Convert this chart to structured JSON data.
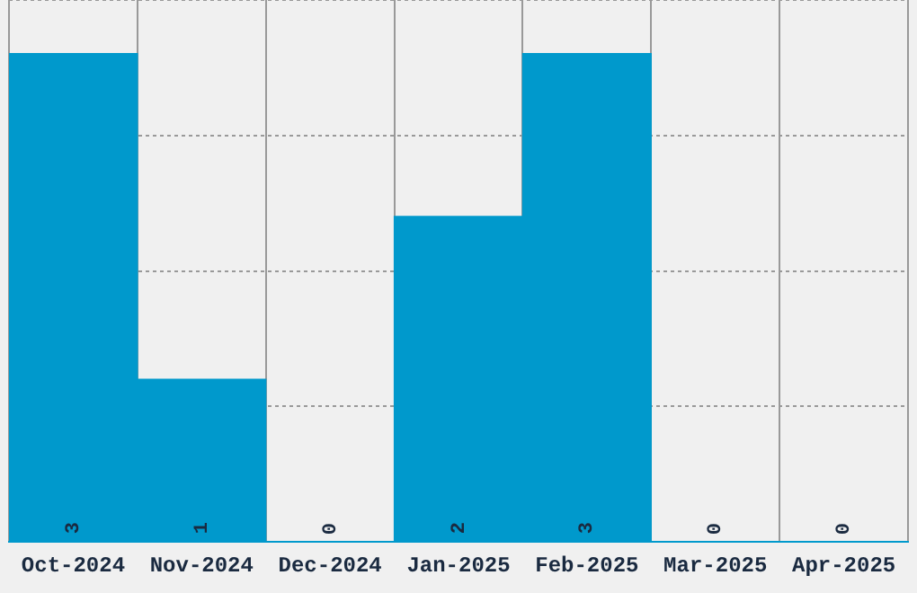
{
  "chart_data": {
    "type": "bar",
    "categories": [
      "Oct-2024",
      "Nov-2024",
      "Dec-2024",
      "Jan-2025",
      "Feb-2025",
      "Mar-2025",
      "Apr-2025"
    ],
    "values": [
      3,
      1,
      0,
      2,
      3,
      0,
      0
    ],
    "color": "#0099cc",
    "ylim": [
      0,
      3.33
    ],
    "yticks": [
      {
        "value": 0,
        "label": null
      },
      {
        "value": 0.8325,
        "label": null
      },
      {
        "value": 1.665,
        "label": null
      },
      {
        "value": 2.4975,
        "label": null
      },
      {
        "value": 3.33,
        "label": null
      }
    ],
    "grid": true,
    "data_labels": true,
    "tick_labels": "x"
  }
}
